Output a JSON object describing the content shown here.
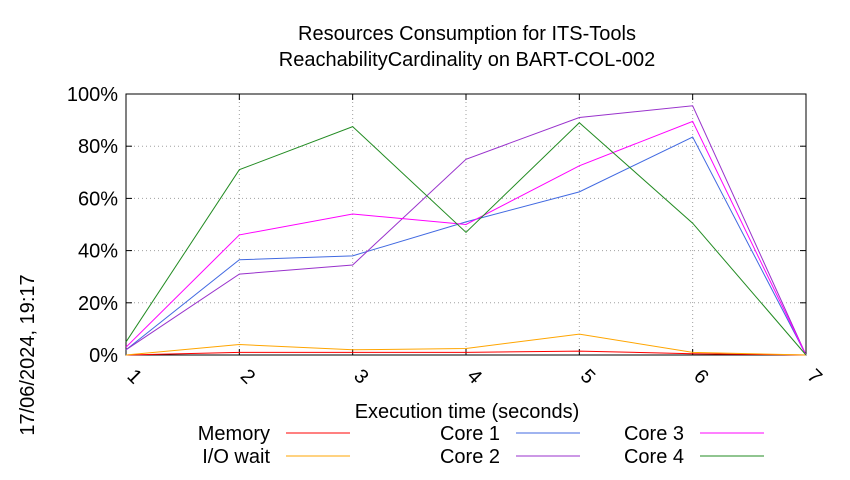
{
  "chart_data": {
    "type": "line",
    "title": "Resources Consumption for ITS-Tools",
    "subtitle": "ReachabilityCardinality on BART-COL-002",
    "xlabel": "Execution time (seconds)",
    "ylabel": "",
    "timestamp": "17/06/2024, 19:17",
    "x": [
      1,
      2,
      3,
      4,
      5,
      6,
      7
    ],
    "xlim": [
      1,
      7
    ],
    "ylim": [
      0,
      100
    ],
    "x_ticks": [
      "1",
      "2",
      "3",
      "4",
      "5",
      "6",
      "7"
    ],
    "y_ticks": [
      "0%",
      "20%",
      "40%",
      "60%",
      "80%",
      "100%"
    ],
    "grid": true,
    "legend_position": "bottom",
    "series": [
      {
        "name": "Memory",
        "color": "#ff0000",
        "values": [
          0,
          1,
          1,
          1,
          1.5,
          0.5,
          0
        ]
      },
      {
        "name": "I/O wait",
        "color": "#ffa500",
        "values": [
          0,
          4,
          2,
          2.5,
          8,
          1,
          0
        ]
      },
      {
        "name": "Core 1",
        "color": "#4169e1",
        "values": [
          2,
          36.5,
          38,
          51,
          62.5,
          83.5,
          0
        ]
      },
      {
        "name": "Core 2",
        "color": "#9932cc",
        "values": [
          2,
          31,
          34.5,
          75,
          91,
          95.5,
          0
        ]
      },
      {
        "name": "Core 3",
        "color": "#ff00ff",
        "values": [
          3,
          46,
          54,
          50,
          72.5,
          89.5,
          0
        ]
      },
      {
        "name": "Core 4",
        "color": "#228b22",
        "values": [
          5,
          71,
          87.5,
          47,
          89,
          50.5,
          0
        ]
      }
    ]
  }
}
